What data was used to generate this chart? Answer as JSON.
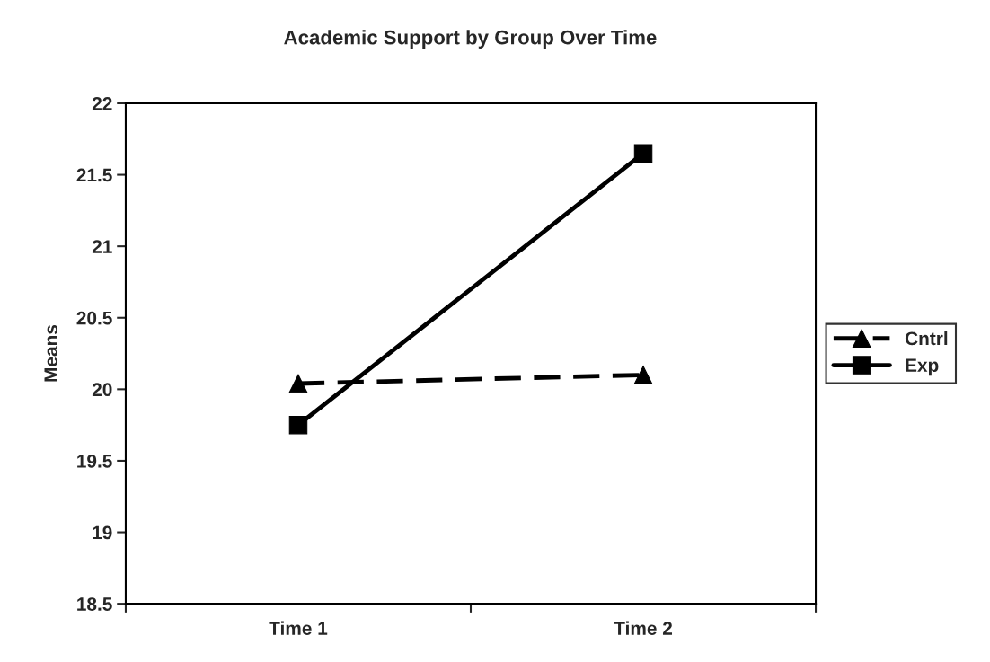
{
  "chart_data": {
    "type": "line",
    "title": "Academic Support by Group Over Time",
    "ylabel": "Means",
    "categories": [
      "Time 1",
      "Time 2"
    ],
    "series": [
      {
        "name": "Cntrl",
        "color": "#000000",
        "values": [
          20.04,
          20.1
        ],
        "marker": "triangle",
        "line_style": "dashed"
      },
      {
        "name": "Exp",
        "color": "#000000",
        "values": [
          19.75,
          21.65
        ],
        "marker": "square",
        "line_style": "solid"
      }
    ],
    "ylim": [
      18.5,
      22
    ],
    "yticks": [
      18.5,
      19,
      19.5,
      20,
      20.5,
      21,
      21.5,
      22
    ],
    "grid": false,
    "legend": "right"
  }
}
